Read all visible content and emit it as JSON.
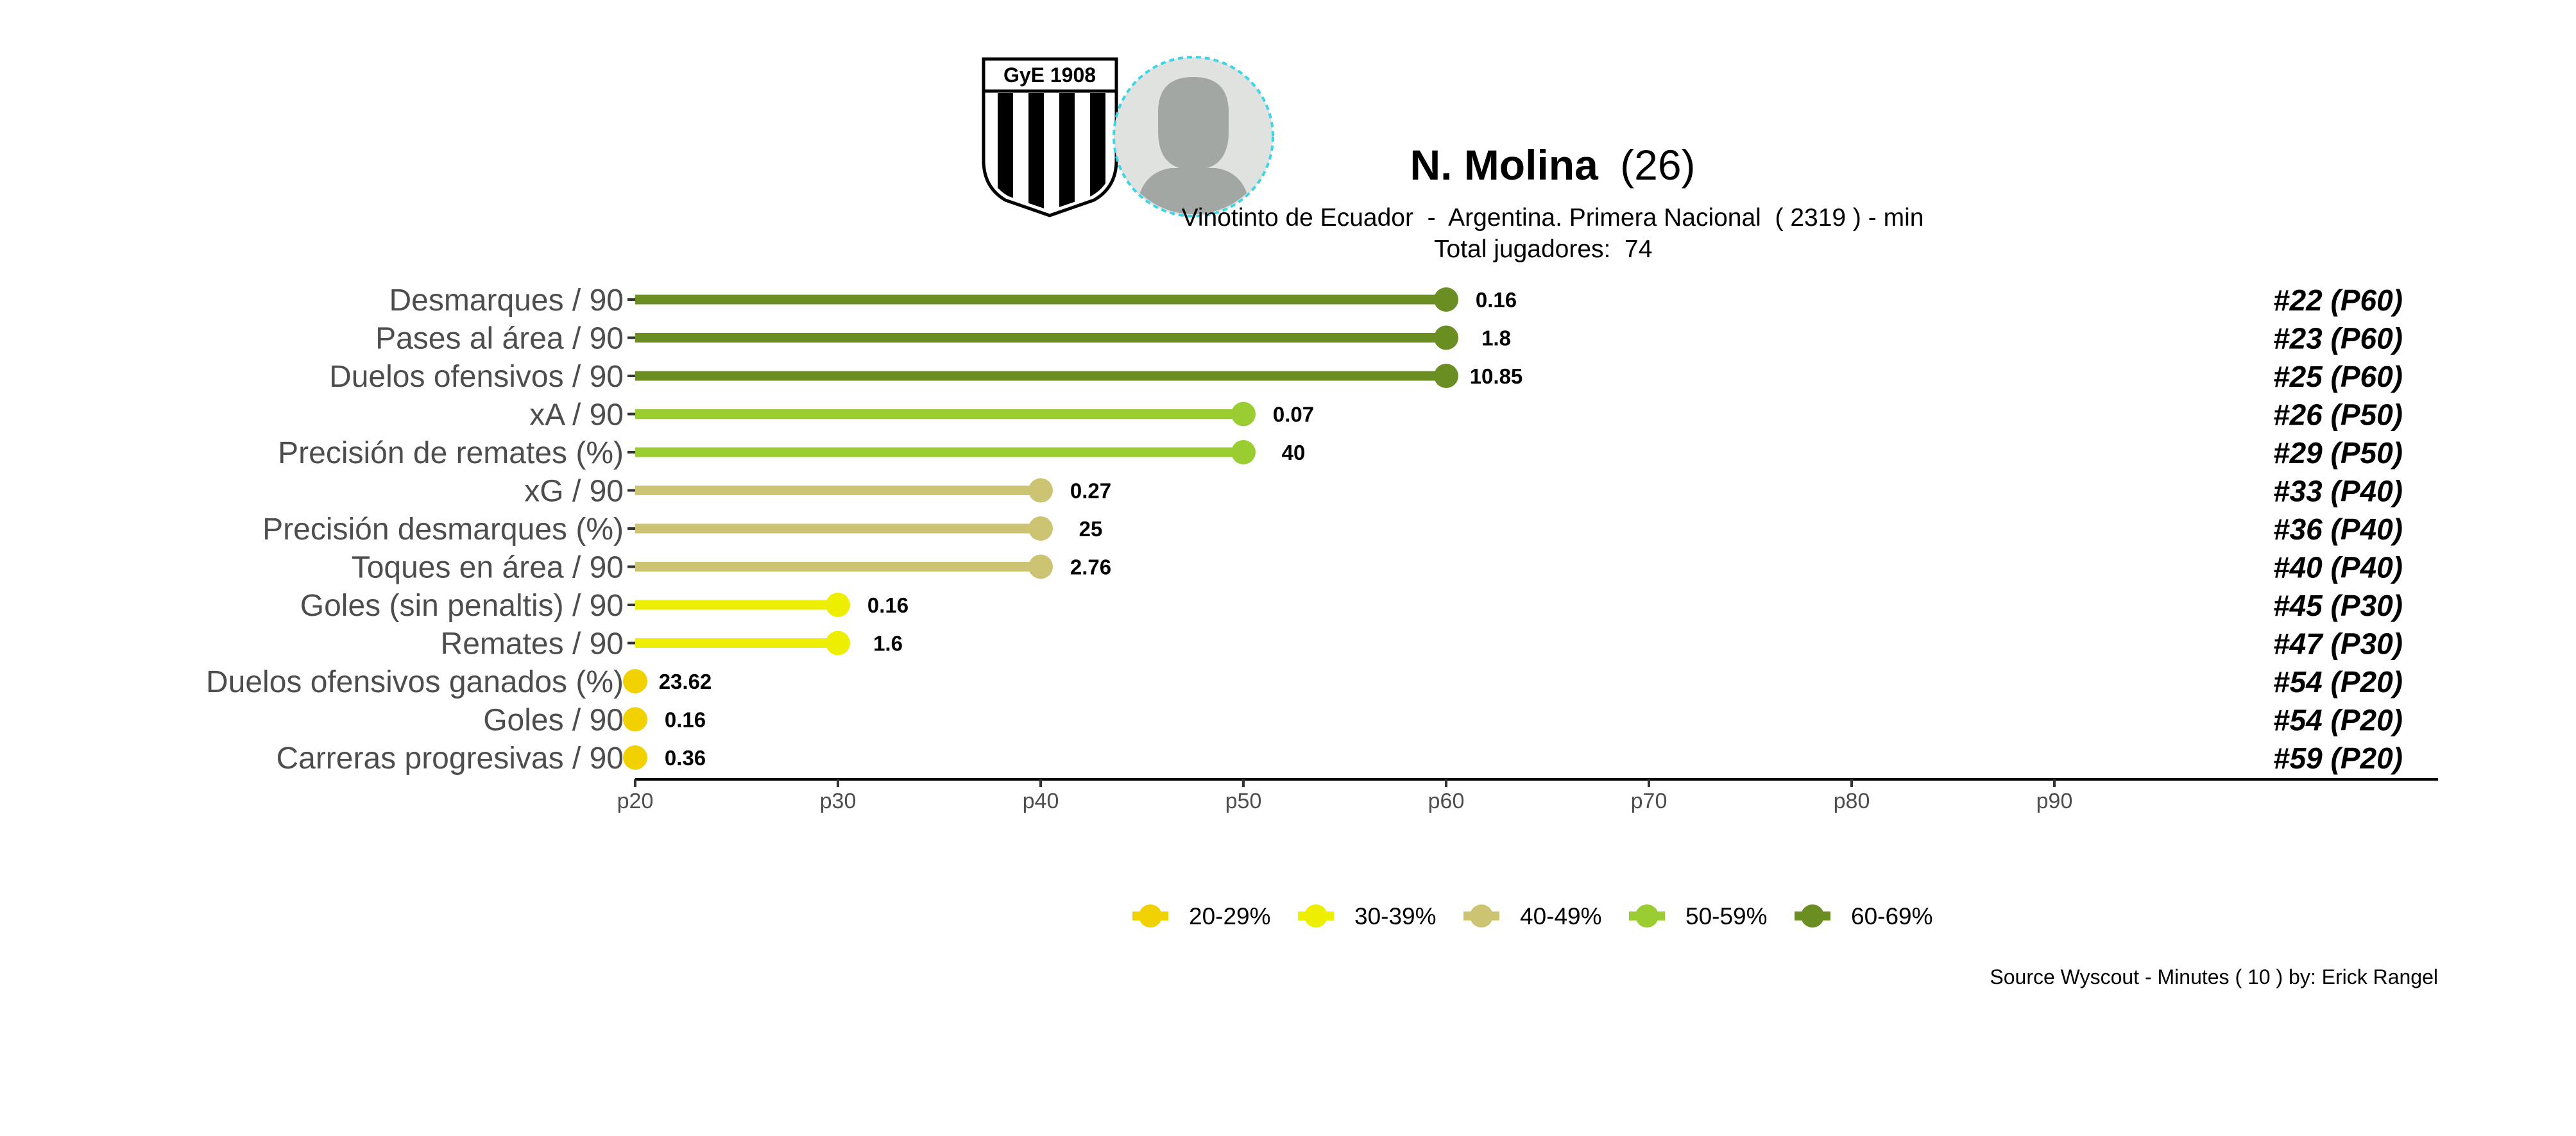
{
  "header": {
    "player_name": "N. Molina",
    "player_age": "(26)",
    "subtitle_line1": "Vinotinto de Ecuador  -  Argentina. Primera Nacional  ( 2319 ) - min",
    "subtitle_line2": "Total jugadores:  74",
    "club_badge_text": "GyE 1908",
    "club_badge_icon": "club-badge-icon",
    "avatar_icon": "player-avatar-icon"
  },
  "chart_data": {
    "type": "bar",
    "orientation": "horizontal-lollipop",
    "categories": [
      "Desmarques / 90",
      "Pases al área / 90",
      "Duelos ofensivos / 90",
      "xA / 90",
      "Precisión de remates (%)",
      "xG / 90",
      "Precisión desmarques (%)",
      "Toques en área / 90",
      "Goles (sin penaltis) / 90",
      "Remates / 90",
      "Duelos ofensivos ganados (%)",
      "Goles / 90",
      "Carreras progresivas / 90"
    ],
    "percentiles": [
      60,
      60,
      60,
      50,
      50,
      40,
      40,
      40,
      30,
      30,
      20,
      20,
      20
    ],
    "value_labels": [
      "0.16",
      "1.8",
      "10.85",
      "0.07",
      "40",
      "0.27",
      "25",
      "2.76",
      "0.16",
      "1.6",
      "23.62",
      "0.16",
      "0.36"
    ],
    "rank_labels": [
      "#22 (P60)",
      "#23 (P60)",
      "#25 (P60)",
      "#26 (P50)",
      "#29 (P50)",
      "#33 (P40)",
      "#36 (P40)",
      "#40 (P40)",
      "#45 (P30)",
      "#47 (P30)",
      "#54 (P20)",
      "#54 (P20)",
      "#59 (P20)"
    ],
    "x_ticks": [
      "p20",
      "p30",
      "p40",
      "p50",
      "p60",
      "p70",
      "p80",
      "p90"
    ],
    "x_tick_values": [
      20,
      30,
      40,
      50,
      60,
      70,
      80,
      90
    ],
    "xlim": [
      20,
      109
    ],
    "xlabel": "",
    "ylabel": "",
    "grid": false,
    "legend_position": "bottom-center",
    "legend": [
      {
        "label": "20-29%",
        "color": "#F2D100",
        "range": [
          20,
          29
        ]
      },
      {
        "label": "30-39%",
        "color": "#EEEE00",
        "range": [
          30,
          39
        ]
      },
      {
        "label": "40-49%",
        "color": "#CCC472",
        "range": [
          40,
          49
        ]
      },
      {
        "label": "50-59%",
        "color": "#9ACD32",
        "range": [
          50,
          59
        ]
      },
      {
        "label": "60-69%",
        "color": "#6B8E23",
        "range": [
          60,
          69
        ]
      }
    ]
  },
  "footer": {
    "source": "Source Wyscout - Minutes ( 10 ) by: Erick Rangel"
  }
}
